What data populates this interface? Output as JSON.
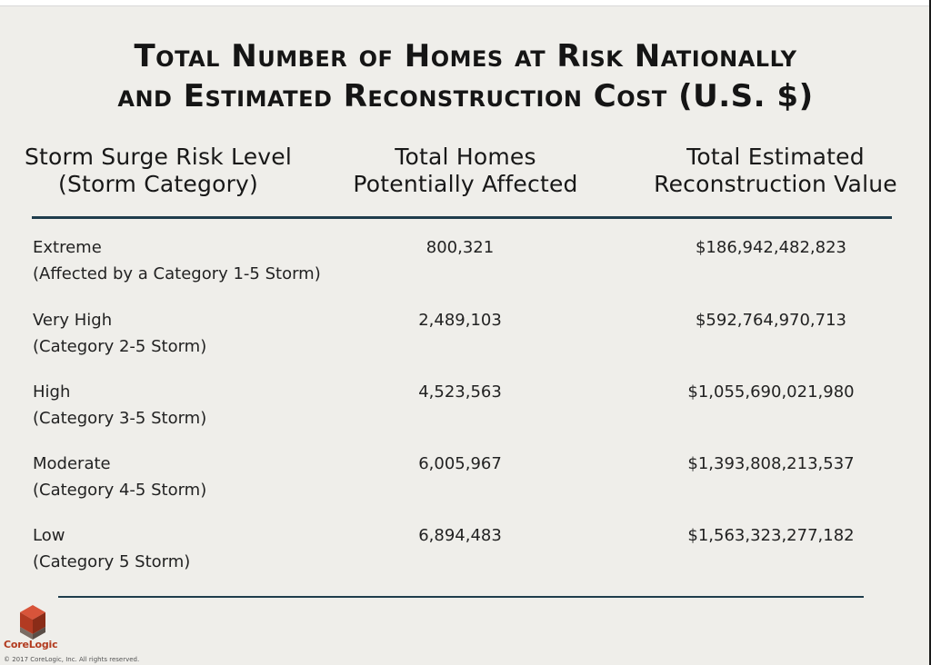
{
  "title": {
    "line1": "Total Number of Homes at Risk Nationally",
    "line2": "and Estimated Reconstruction Cost (U.S. $)"
  },
  "headers": {
    "col1_line1": "Storm Surge Risk Level",
    "col1_line2": "(Storm Category)",
    "col2_line1": "Total Homes",
    "col2_line2": "Potentially Affected",
    "col3_line1": "Total Estimated",
    "col3_line2": "Reconstruction Value"
  },
  "rows": [
    {
      "level": "Extreme",
      "category": "(Affected by a Category 1-5 Storm)",
      "homes": "800,321",
      "value": "$186,942,482,823"
    },
    {
      "level": "Very High",
      "category": "(Category 2-5 Storm)",
      "homes": "2,489,103",
      "value": "$592,764,970,713"
    },
    {
      "level": "High",
      "category": "(Category 3-5 Storm)",
      "homes": "4,523,563",
      "value": "$1,055,690,021,980"
    },
    {
      "level": "Moderate",
      "category": "(Category 4-5 Storm)",
      "homes": "6,005,967",
      "value": "$1,393,808,213,537"
    },
    {
      "level": "Low",
      "category": "(Category 5 Storm)",
      "homes": "6,894,483",
      "value": "$1,563,323,277,182"
    }
  ],
  "footer": {
    "logo_text": "CoreLogic",
    "copyright": "© 2017 CoreLogic, Inc. All rights reserved."
  },
  "colors": {
    "rule": "#1f3d4c",
    "logo_red": "#c0412a",
    "logo_gray": "#6b5e56"
  }
}
